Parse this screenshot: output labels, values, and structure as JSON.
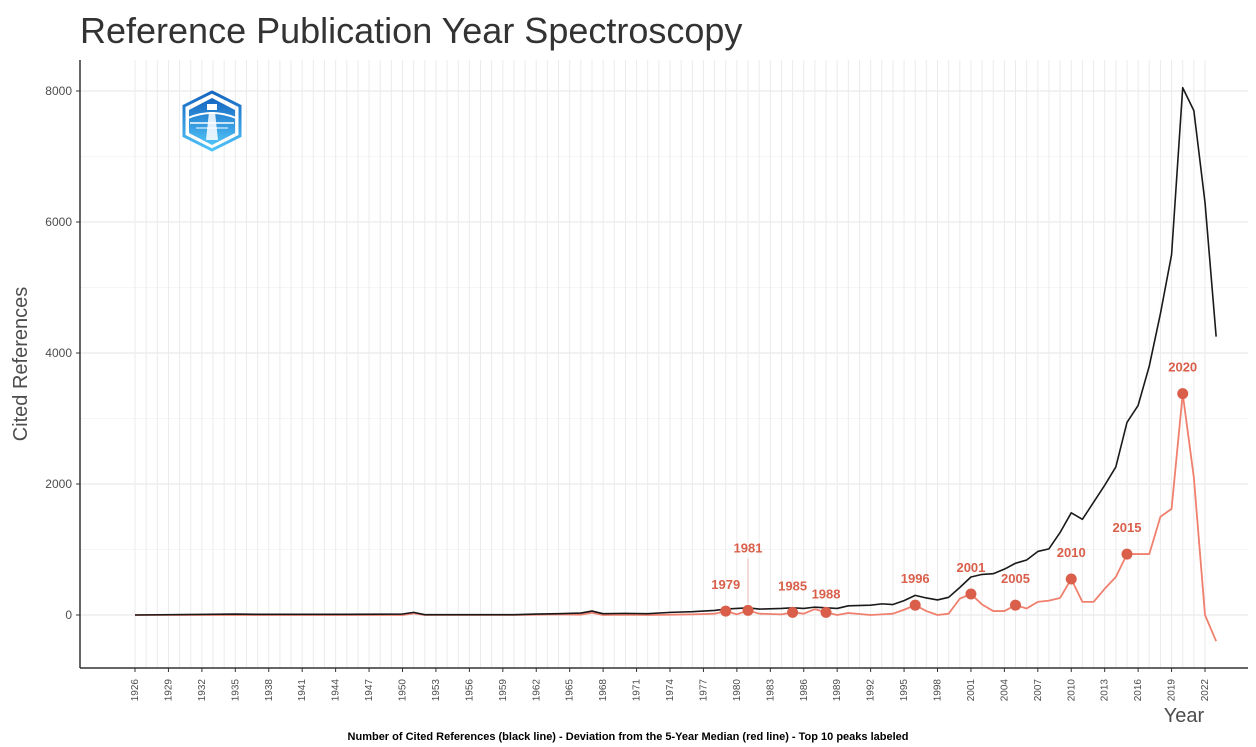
{
  "chart_data": {
    "type": "line",
    "title": "Reference Publication Year Spectroscopy",
    "xlabel": "Year",
    "ylabel": "Cited References",
    "caption": "Number of Cited References (black line) - Deviation from the 5-Year Median (red line) - Top 10 peaks labeled",
    "xlim": [
      1926,
      2023
    ],
    "ylim": [
      -850,
      8400
    ],
    "x_ticks": [
      1926,
      1929,
      1932,
      1935,
      1938,
      1941,
      1944,
      1947,
      1950,
      1953,
      1956,
      1959,
      1962,
      1965,
      1968,
      1971,
      1974,
      1977,
      1980,
      1983,
      1986,
      1989,
      1992,
      1995,
      1998,
      2001,
      2004,
      2007,
      2010,
      2013,
      2016,
      2019,
      2022
    ],
    "y_ticks": [
      0,
      2000,
      4000,
      6000,
      8000
    ],
    "grid": true,
    "colors": {
      "count": "#1a1a1a",
      "deviation": "#f0806e",
      "peak": "#d95f4b",
      "grid": "#ebebeb",
      "axis": "#333333"
    },
    "series": [
      {
        "name": "Number of Cited References",
        "x": [
          1926,
          1935,
          1937,
          1945,
          1950,
          1951,
          1952,
          1960,
          1962,
          1964,
          1966,
          1967,
          1968,
          1970,
          1972,
          1974,
          1976,
          1978,
          1979,
          1980,
          1981,
          1982,
          1984,
          1985,
          1986,
          1987,
          1988,
          1989,
          1990,
          1992,
          1993,
          1994,
          1995,
          1996,
          1997,
          1998,
          1999,
          2000,
          2001,
          2002,
          2003,
          2004,
          2005,
          2006,
          2007,
          2008,
          2009,
          2010,
          2011,
          2012,
          2013,
          2014,
          2015,
          2016,
          2017,
          2018,
          2019,
          2020,
          2021,
          2022,
          2023
        ],
        "values": [
          0,
          15,
          10,
          10,
          15,
          40,
          5,
          5,
          15,
          20,
          30,
          60,
          20,
          25,
          20,
          40,
          50,
          70,
          90,
          100,
          110,
          90,
          100,
          110,
          100,
          120,
          110,
          100,
          140,
          150,
          170,
          160,
          220,
          300,
          260,
          230,
          270,
          420,
          580,
          620,
          630,
          700,
          790,
          840,
          970,
          1010,
          1260,
          1560,
          1460,
          1720,
          1980,
          2260,
          2940,
          3200,
          3800,
          4600,
          5500,
          8050,
          7700,
          6300,
          4250
        ]
      },
      {
        "name": "Deviation from the 5-Year Median",
        "x": [
          1926,
          1950,
          1951,
          1952,
          1960,
          1962,
          1964,
          1966,
          1967,
          1968,
          1970,
          1972,
          1974,
          1976,
          1978,
          1979,
          1980,
          1981,
          1982,
          1984,
          1985,
          1986,
          1987,
          1988,
          1989,
          1990,
          1992,
          1994,
          1995,
          1996,
          1997,
          1998,
          1999,
          2000,
          2001,
          2002,
          2003,
          2004,
          2005,
          2006,
          2007,
          2008,
          2009,
          2010,
          2011,
          2012,
          2013,
          2014,
          2015,
          2016,
          2017,
          2018,
          2019,
          2020,
          2021,
          2022,
          2023
        ],
        "values": [
          0,
          0,
          25,
          0,
          0,
          5,
          10,
          5,
          35,
          0,
          5,
          0,
          5,
          10,
          20,
          60,
          10,
          70,
          20,
          10,
          40,
          20,
          90,
          40,
          0,
          30,
          0,
          20,
          80,
          150,
          60,
          0,
          20,
          250,
          320,
          160,
          60,
          60,
          150,
          100,
          200,
          220,
          260,
          550,
          200,
          200,
          400,
          580,
          930,
          930,
          930,
          1500,
          1620,
          3380,
          2100,
          0,
          -400
        ]
      }
    ],
    "peaks": [
      {
        "year": 1979,
        "label": "1979",
        "value": 60
      },
      {
        "year": 1981,
        "label": "1981",
        "value": 70
      },
      {
        "year": 1985,
        "label": "1985",
        "value": 40
      },
      {
        "year": 1988,
        "label": "1988",
        "value": 40
      },
      {
        "year": 1996,
        "label": "1996",
        "value": 150
      },
      {
        "year": 2001,
        "label": "2001",
        "value": 320
      },
      {
        "year": 2005,
        "label": "2005",
        "value": 150
      },
      {
        "year": 2010,
        "label": "2010",
        "value": 550
      },
      {
        "year": 2015,
        "label": "2015",
        "value": 930
      },
      {
        "year": 2020,
        "label": "2020",
        "value": 3380
      }
    ],
    "logo": {
      "icon": "lighthouse-hexagon-logo-icon",
      "color_top": "#1565c0",
      "color_bottom": "#4fc3f7"
    }
  }
}
